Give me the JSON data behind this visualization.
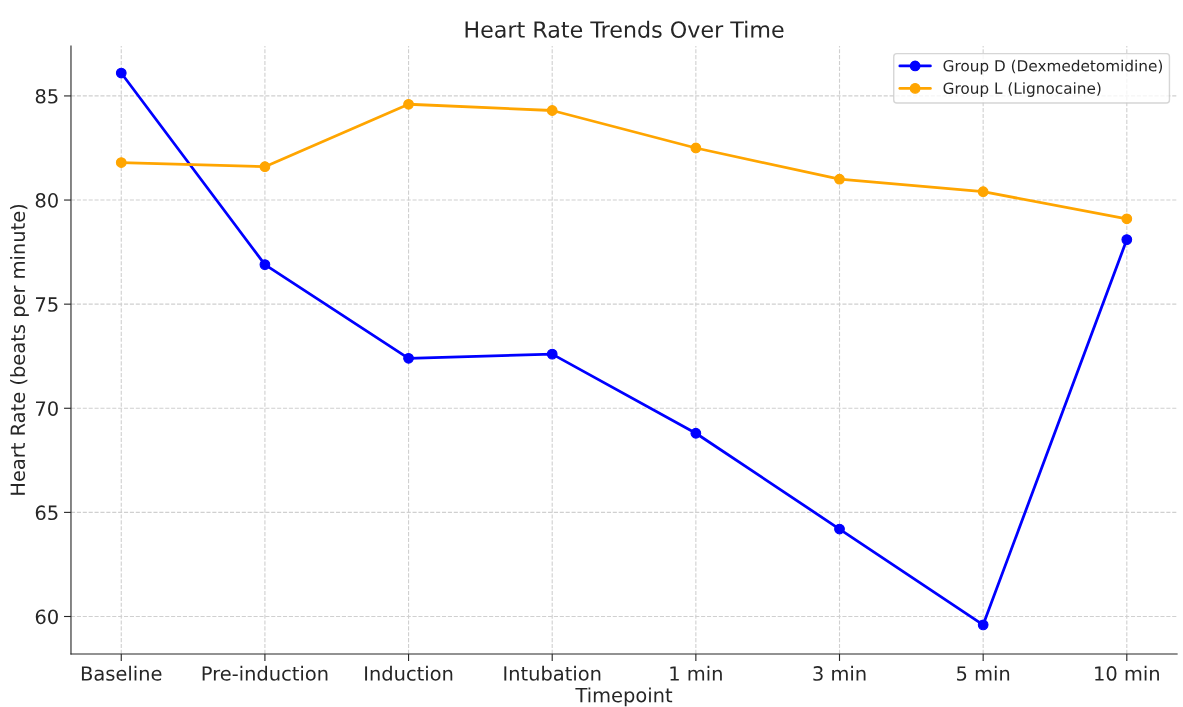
{
  "chart_data": {
    "type": "line",
    "title": "Heart Rate Trends Over Time",
    "xlabel": "Timepoint",
    "ylabel": "Heart Rate (beats per minute)",
    "categories": [
      "Baseline",
      "Pre-induction",
      "Induction",
      "Intubation",
      "1 min",
      "3 min",
      "5 min",
      "10 min"
    ],
    "series": [
      {
        "name": "Group D (Dexmedetomidine)",
        "color": "#0000ff",
        "values": [
          86.1,
          76.9,
          72.4,
          72.6,
          68.8,
          64.2,
          59.6,
          78.1
        ]
      },
      {
        "name": "Group L (Lignocaine)",
        "color": "#ffa500",
        "values": [
          81.8,
          81.6,
          84.6,
          84.3,
          82.5,
          81.0,
          80.4,
          79.1
        ]
      }
    ],
    "ylim": [
      58.2,
      87.4
    ],
    "yticks": [
      60,
      65,
      70,
      75,
      80,
      85
    ],
    "grid": true,
    "legend": "top right",
    "marker": "circle",
    "line_style": "solid"
  }
}
